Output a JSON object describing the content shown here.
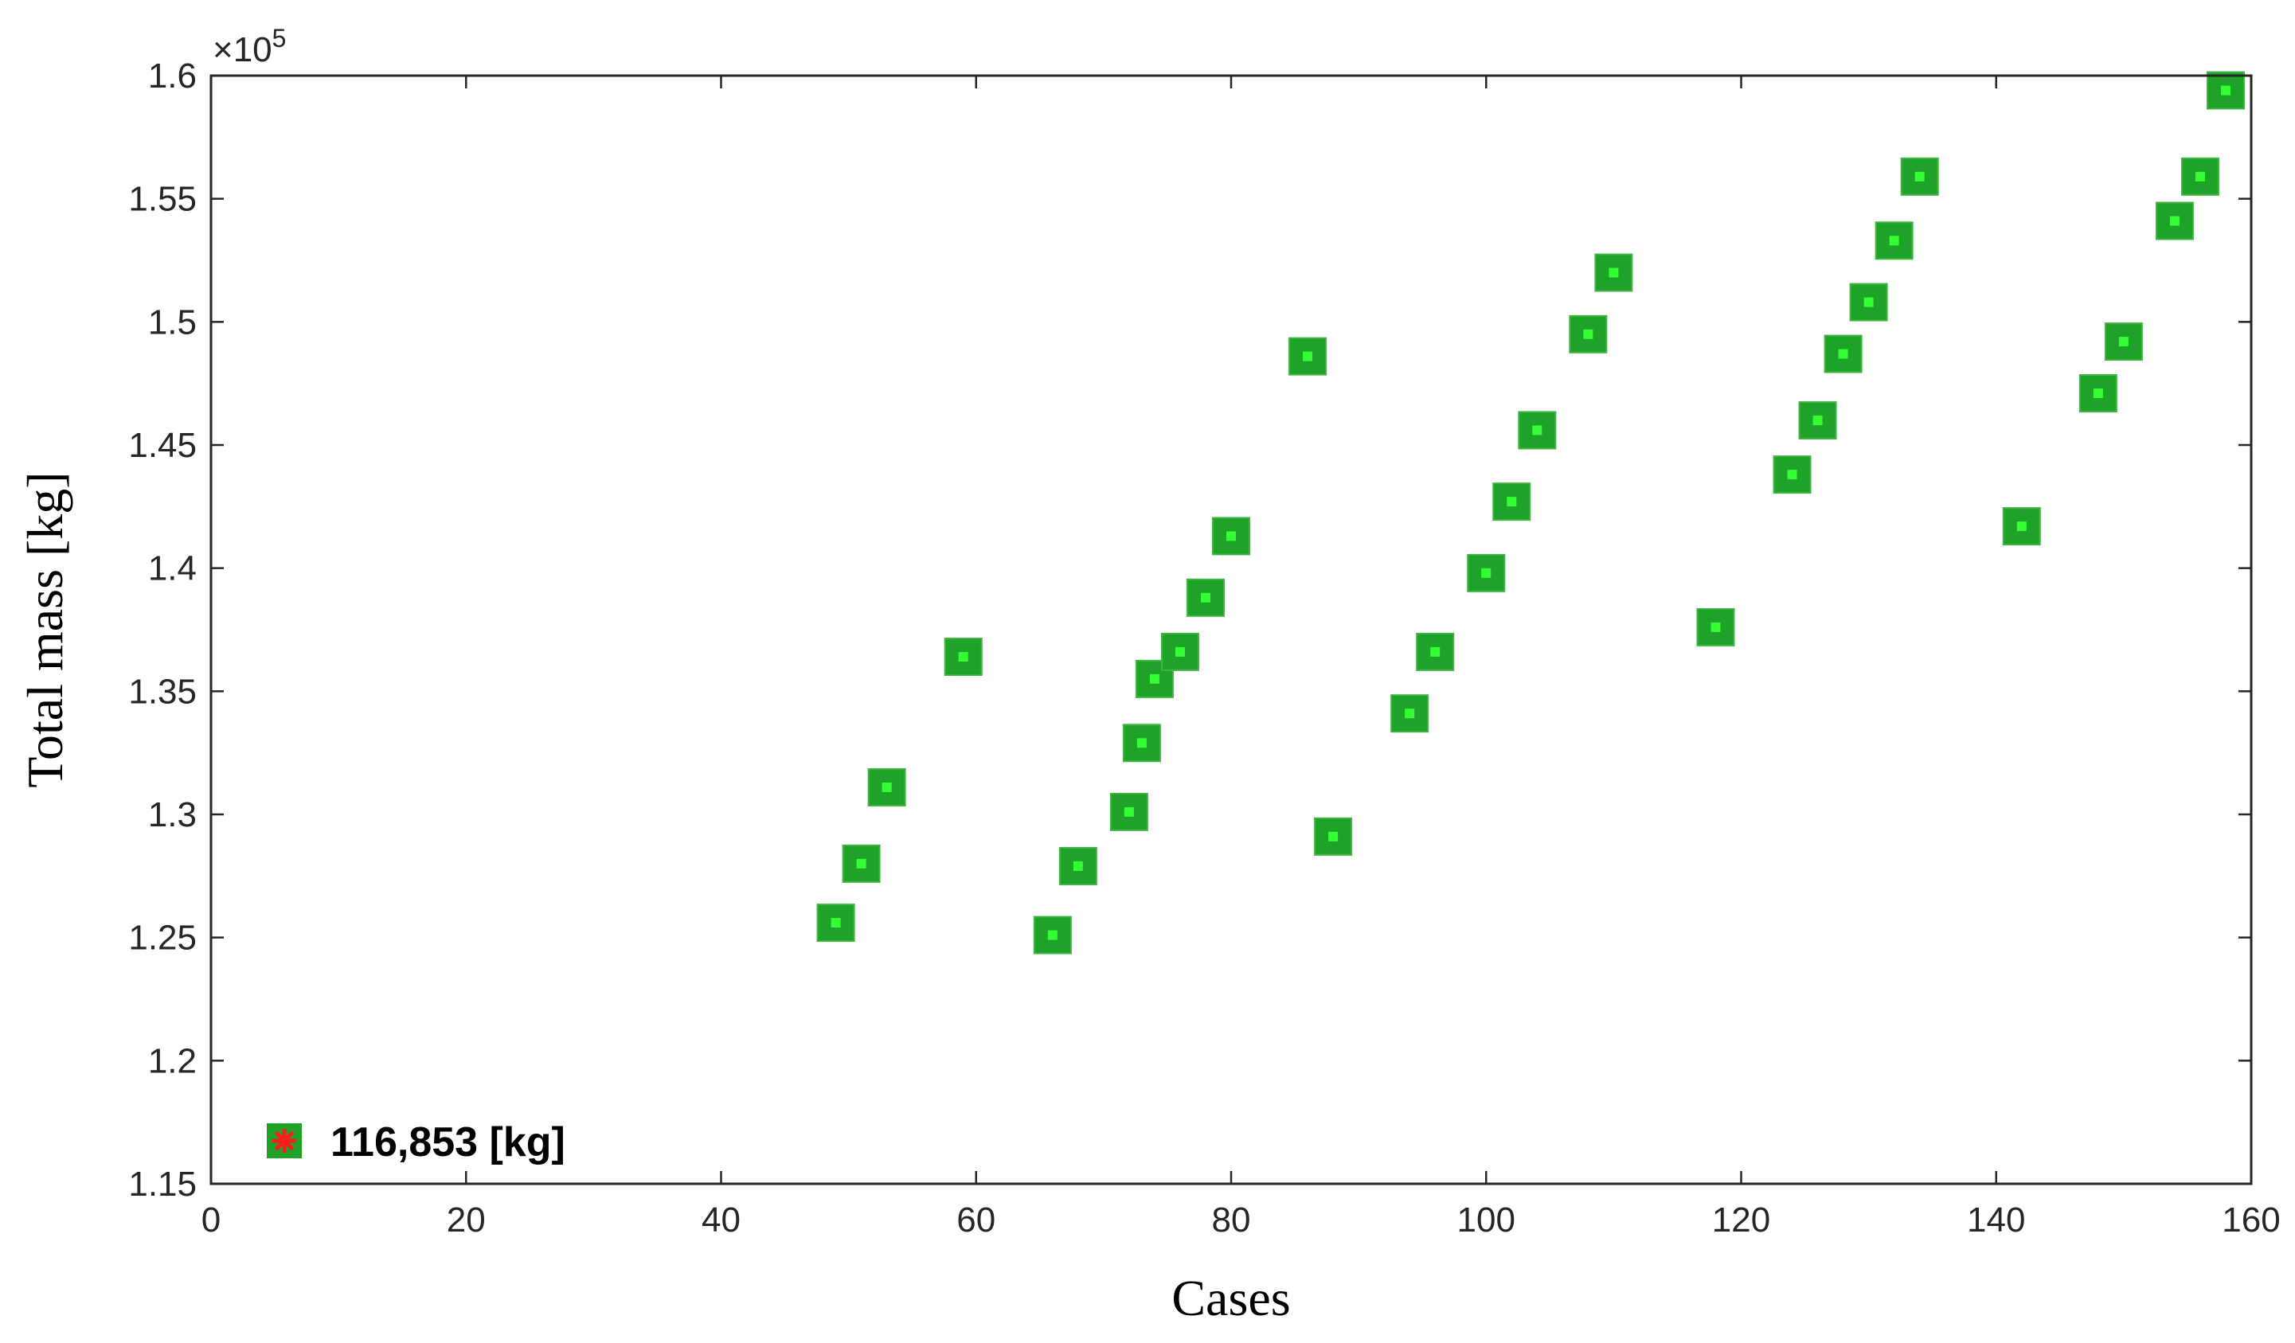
{
  "chart_data": {
    "type": "scatter",
    "xlabel": "Cases",
    "ylabel": "Total mass  [kg]",
    "y_exponent": {
      "base": "×10",
      "power": "5"
    },
    "xlim": [
      0,
      160
    ],
    "ylim": [
      1.15,
      1.6
    ],
    "xticks": [
      "0",
      "20",
      "40",
      "60",
      "80",
      "100",
      "120",
      "140",
      "160"
    ],
    "yticks": [
      "1.15",
      "1.2",
      "1.25",
      "1.3",
      "1.35",
      "1.4",
      "1.45",
      "1.5",
      "1.55",
      "1.6"
    ],
    "grid": false,
    "legend_position": "bottom-left",
    "legend_label": "116,853 [kg]",
    "colors": {
      "marker_fill": "#1fa22a",
      "marker_center": "#33ff33",
      "legend_star": "#ff1a1a",
      "axis": "#262626"
    },
    "points": [
      {
        "x": 49,
        "y": 1.256
      },
      {
        "x": 51,
        "y": 1.28
      },
      {
        "x": 53,
        "y": 1.311
      },
      {
        "x": 59,
        "y": 1.364
      },
      {
        "x": 66,
        "y": 1.251
      },
      {
        "x": 68,
        "y": 1.279
      },
      {
        "x": 72,
        "y": 1.301
      },
      {
        "x": 73,
        "y": 1.329
      },
      {
        "x": 74,
        "y": 1.355
      },
      {
        "x": 76,
        "y": 1.366
      },
      {
        "x": 78,
        "y": 1.388
      },
      {
        "x": 80,
        "y": 1.413
      },
      {
        "x": 86,
        "y": 1.486
      },
      {
        "x": 88,
        "y": 1.291
      },
      {
        "x": 94,
        "y": 1.341
      },
      {
        "x": 96,
        "y": 1.366
      },
      {
        "x": 100,
        "y": 1.398
      },
      {
        "x": 102,
        "y": 1.427
      },
      {
        "x": 104,
        "y": 1.456
      },
      {
        "x": 108,
        "y": 1.495
      },
      {
        "x": 110,
        "y": 1.52
      },
      {
        "x": 118,
        "y": 1.376
      },
      {
        "x": 124,
        "y": 1.438
      },
      {
        "x": 126,
        "y": 1.46
      },
      {
        "x": 128,
        "y": 1.487
      },
      {
        "x": 130,
        "y": 1.508
      },
      {
        "x": 132,
        "y": 1.533
      },
      {
        "x": 134,
        "y": 1.559
      },
      {
        "x": 142,
        "y": 1.417
      },
      {
        "x": 148,
        "y": 1.471
      },
      {
        "x": 150,
        "y": 1.492
      },
      {
        "x": 154,
        "y": 1.541
      },
      {
        "x": 156,
        "y": 1.559
      },
      {
        "x": 158,
        "y": 1.594
      }
    ]
  }
}
